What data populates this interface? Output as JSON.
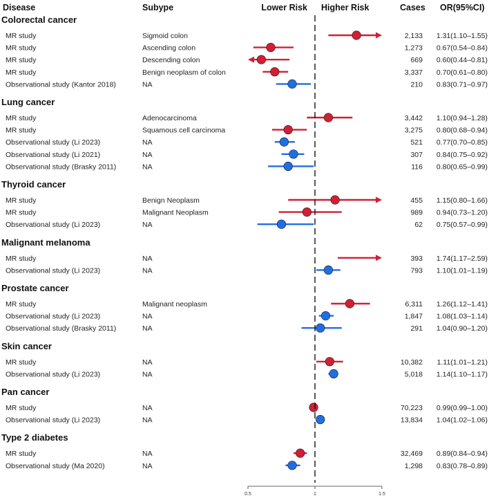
{
  "chart_data": {
    "type": "forest",
    "headers": {
      "disease": "Disease",
      "subtype": "Subype",
      "lower": "Lower Risk",
      "higher": "Higher Risk",
      "cases": "Cases",
      "or": "OR(95%CI)"
    },
    "x_ticks": [
      {
        "value": 0.5,
        "label": "0.5"
      },
      {
        "value": 1,
        "label": "1"
      },
      {
        "value": 1.5,
        "label": "1.5"
      }
    ],
    "xlim": [
      0.5,
      1.5
    ],
    "reference_line": 1,
    "colors": {
      "mr": "#d11f35",
      "observational": "#1f6fe0",
      "reference": "#111111"
    },
    "groups": [
      {
        "name": "Colorectal cancer",
        "rows": [
          {
            "study": "MR study",
            "subtype": "Sigmoid colon",
            "cases": "2,133",
            "or_text": "1.31(1.10–1.55)",
            "or": 1.31,
            "lo": 1.1,
            "hi": 1.55,
            "kind": "mr",
            "arrow": "right"
          },
          {
            "study": "MR study",
            "subtype": "Ascending colon",
            "cases": "1,273",
            "or_text": "0.67(0.54–0.84)",
            "or": 0.67,
            "lo": 0.54,
            "hi": 0.84,
            "kind": "mr"
          },
          {
            "study": "MR study",
            "subtype": "Descending colon",
            "cases": "669",
            "or_text": "0.60(0.44–0.81)",
            "or": 0.6,
            "lo": 0.44,
            "hi": 0.81,
            "kind": "mr",
            "arrow": "left"
          },
          {
            "study": "MR study",
            "subtype": "Benign neoplasm of colon",
            "cases": "3,337",
            "or_text": "0.70(0.61–0.80)",
            "or": 0.7,
            "lo": 0.61,
            "hi": 0.8,
            "kind": "mr"
          },
          {
            "study": "Observational study (Kantor 2018)",
            "subtype": "NA",
            "cases": "210",
            "or_text": "0.83(0.71–0.97)",
            "or": 0.83,
            "lo": 0.71,
            "hi": 0.97,
            "kind": "observational"
          }
        ]
      },
      {
        "name": "Lung cancer",
        "rows": [
          {
            "study": "MR study",
            "subtype": "Adenocarcinoma",
            "cases": "3,442",
            "or_text": "1.10(0.94–1.28)",
            "or": 1.1,
            "lo": 0.94,
            "hi": 1.28,
            "kind": "mr"
          },
          {
            "study": "MR study",
            "subtype": "Squamous cell carcinoma",
            "cases": "3,275",
            "or_text": "0.80(0.68–0.94)",
            "or": 0.8,
            "lo": 0.68,
            "hi": 0.94,
            "kind": "mr"
          },
          {
            "study": "Observational study (Li 2023)",
            "subtype": "NA",
            "cases": "521",
            "or_text": "0.77(0.70–0.85)",
            "or": 0.77,
            "lo": 0.7,
            "hi": 0.85,
            "kind": "observational"
          },
          {
            "study": "Observational study (Li 2021)",
            "subtype": "NA",
            "cases": "307",
            "or_text": "0.84(0.75–0.92)",
            "or": 0.84,
            "lo": 0.75,
            "hi": 0.92,
            "kind": "observational"
          },
          {
            "study": "Observational study (Brasky 2011)",
            "subtype": "NA",
            "cases": "116",
            "or_text": "0.80(0.65–0.99)",
            "or": 0.8,
            "lo": 0.65,
            "hi": 0.99,
            "kind": "observational"
          }
        ]
      },
      {
        "name": "Thyroid cancer",
        "rows": [
          {
            "study": "MR study",
            "subtype": "Benign Neoplasm",
            "cases": "455",
            "or_text": "1.15(0.80–1.66)",
            "or": 1.15,
            "lo": 0.8,
            "hi": 1.66,
            "kind": "mr",
            "arrow": "right"
          },
          {
            "study": "MR study",
            "subtype": "Malignant Neoplasm",
            "cases": "989",
            "or_text": "0.94(0.73–1.20)",
            "or": 0.94,
            "lo": 0.73,
            "hi": 1.2,
            "kind": "mr"
          },
          {
            "study": "Observational study (Li 2023)",
            "subtype": "NA",
            "cases": "62",
            "or_text": "0.75(0.57–0.99)",
            "or": 0.75,
            "lo": 0.57,
            "hi": 0.99,
            "kind": "observational"
          }
        ]
      },
      {
        "name": "Malignant melanoma",
        "rows": [
          {
            "study": "MR study",
            "subtype": "NA",
            "cases": "393",
            "or_text": "1.74(1.17–2.59)",
            "or": 1.74,
            "lo": 1.17,
            "hi": 2.59,
            "kind": "mr",
            "arrow": "right",
            "no_point": true
          },
          {
            "study": "Observational study (Li 2023)",
            "subtype": "NA",
            "cases": "793",
            "or_text": "1.10(1.01–1.19)",
            "or": 1.1,
            "lo": 1.01,
            "hi": 1.19,
            "kind": "observational"
          }
        ]
      },
      {
        "name": "Prostate cancer",
        "rows": [
          {
            "study": "MR study",
            "subtype": "Malignant neoplasm",
            "cases": "6,311",
            "or_text": "1.26(1.12–1.41)",
            "or": 1.26,
            "lo": 1.12,
            "hi": 1.41,
            "kind": "mr"
          },
          {
            "study": "Observational study (Li 2023)",
            "subtype": "NA",
            "cases": "1,847",
            "or_text": "1.08(1.03–1.14)",
            "or": 1.08,
            "lo": 1.03,
            "hi": 1.14,
            "kind": "observational"
          },
          {
            "study": "Observational study (Brasky 2011)",
            "subtype": "NA",
            "cases": "291",
            "or_text": "1.04(0.90–1.20)",
            "or": 1.04,
            "lo": 0.9,
            "hi": 1.2,
            "kind": "observational"
          }
        ]
      },
      {
        "name": "Skin cancer",
        "rows": [
          {
            "study": "MR study",
            "subtype": "NA",
            "cases": "10,382",
            "or_text": "1.11(1.01–1.21)",
            "or": 1.11,
            "lo": 1.01,
            "hi": 1.21,
            "kind": "mr"
          },
          {
            "study": "Observational study (Li 2023)",
            "subtype": "NA",
            "cases": "5,018",
            "or_text": "1.14(1.10–1.17)",
            "or": 1.14,
            "lo": 1.1,
            "hi": 1.17,
            "kind": "observational"
          }
        ]
      },
      {
        "name": "Pan cancer",
        "rows": [
          {
            "study": "MR study",
            "subtype": "NA",
            "cases": "70,223",
            "or_text": "0.99(0.99–1.00)",
            "or": 0.99,
            "lo": 0.99,
            "hi": 1.0,
            "kind": "mr"
          },
          {
            "study": "Observational study (Li 2023)",
            "subtype": "NA",
            "cases": "13,834",
            "or_text": "1.04(1.02–1.06)",
            "or": 1.04,
            "lo": 1.02,
            "hi": 1.06,
            "kind": "observational"
          }
        ]
      },
      {
        "name": "Type 2 diabetes",
        "rows": [
          {
            "study": "MR study",
            "subtype": "NA",
            "cases": "32,469",
            "or_text": "0.89(0.84–0.94)",
            "or": 0.89,
            "lo": 0.84,
            "hi": 0.94,
            "kind": "mr"
          },
          {
            "study": "Observational study (Ma 2020)",
            "subtype": "NA",
            "cases": "1,298",
            "or_text": "0.83(0.78–0.89)",
            "or": 0.83,
            "lo": 0.78,
            "hi": 0.89,
            "kind": "observational"
          }
        ]
      }
    ]
  }
}
